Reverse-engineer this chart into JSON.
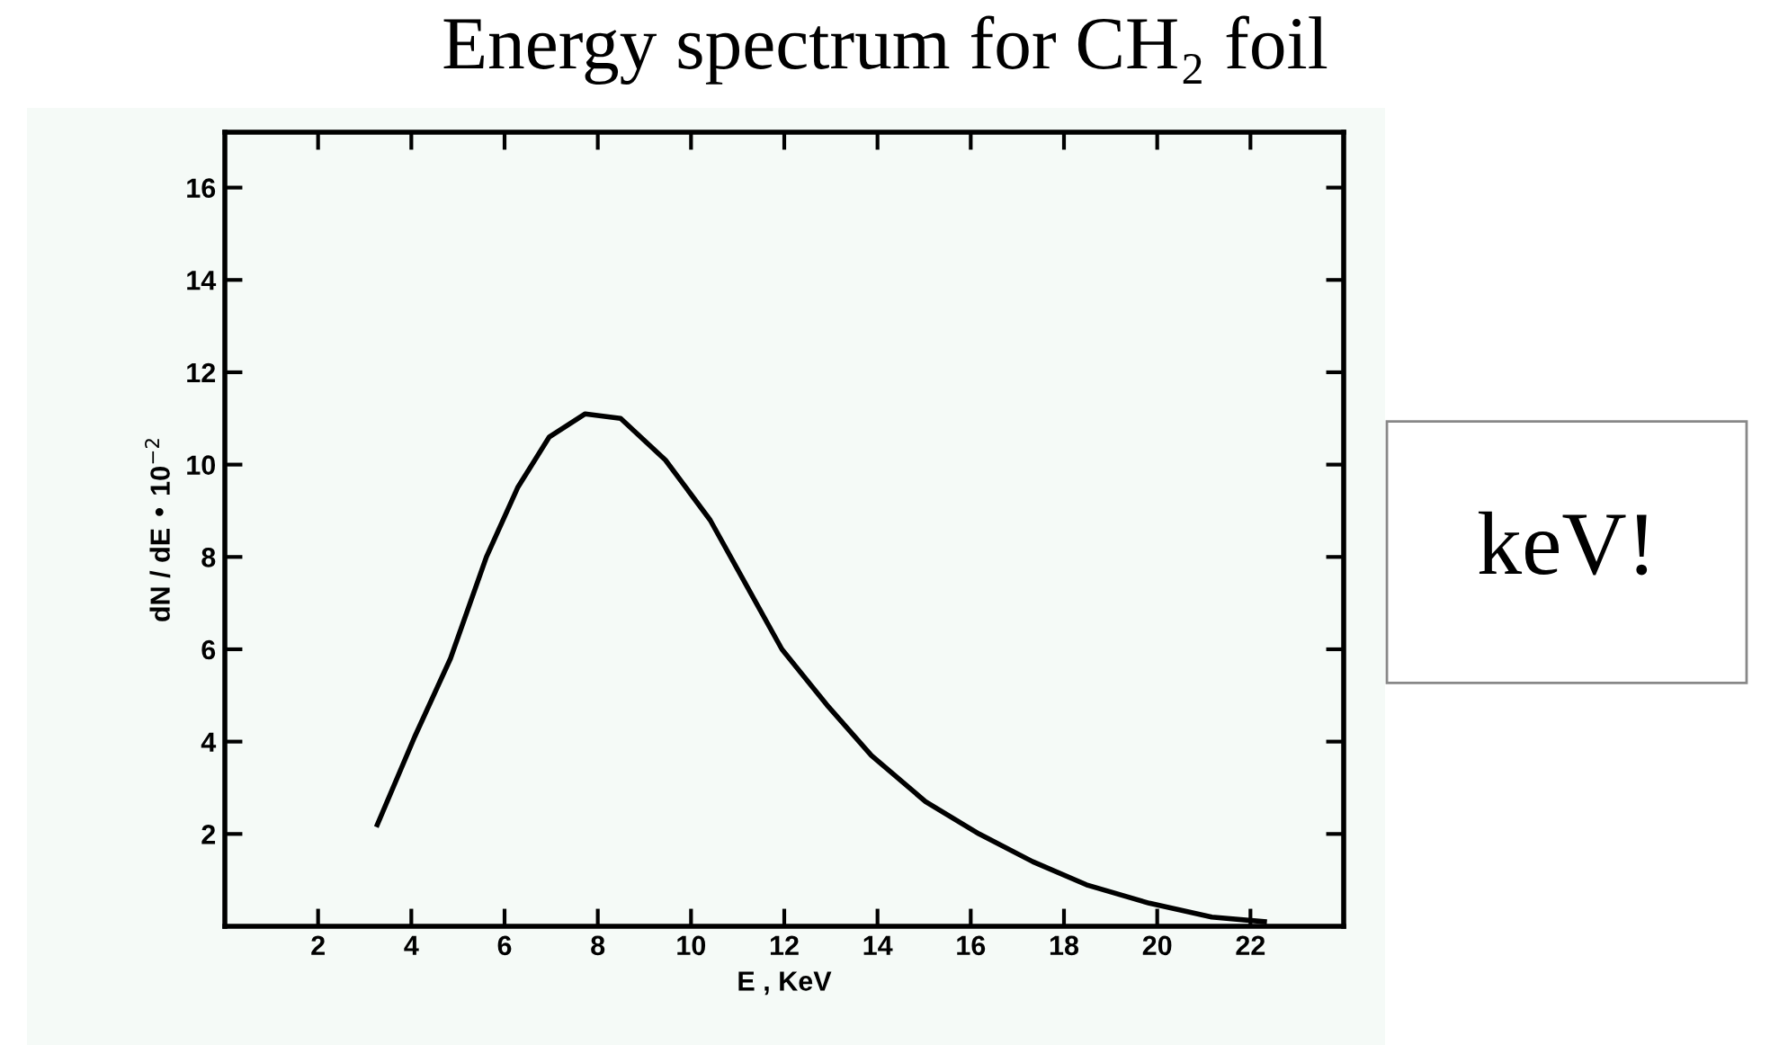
{
  "chart_data": {
    "type": "line",
    "title": "Energy spectrum for CH₂ foil",
    "xlabel": "E , KeV",
    "ylabel": "dN / dE • 10$^{−2}$",
    "annotations": [
      "keV!"
    ],
    "x": [
      3.27,
      4.07,
      4.84,
      5.61,
      6.28,
      6.96,
      7.73,
      8.49,
      9.45,
      10.41,
      11.18,
      11.95,
      12.91,
      13.87,
      15.03,
      16.18,
      17.33,
      18.48,
      19.83,
      21.17,
      22.3
    ],
    "series": [
      {
        "color": "#000000",
        "values": [
          2.2,
          4.1,
          5.8,
          8.0,
          9.5,
          10.6,
          11.1,
          11.0,
          10.1,
          8.8,
          7.4,
          6.0,
          4.8,
          3.7,
          2.7,
          2.0,
          1.4,
          0.9,
          0.5,
          0.2,
          0.1
        ]
      }
    ],
    "xlim": [
      0,
      24
    ],
    "ylim": [
      0,
      17.2
    ],
    "xticks": [
      2,
      4,
      6,
      8,
      10,
      12,
      14,
      16,
      18,
      20,
      22
    ],
    "yticks": [
      2,
      4,
      6,
      8,
      10,
      12,
      14,
      16
    ],
    "grid": false,
    "legend": false,
    "marker": "none",
    "line_style": "solid"
  }
}
